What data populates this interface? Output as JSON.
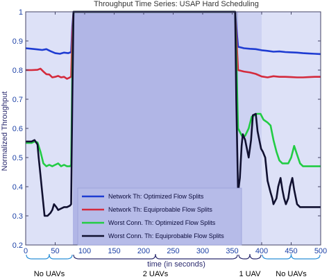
{
  "chart_data": {
    "type": "line",
    "title": "Throughput Time Series: USAP Hard Scheduling",
    "xlabel": "time (in seconds)",
    "ylabel": "Normalized Throughput",
    "xlim": [
      0,
      500
    ],
    "ylim": [
      0.2,
      1
    ],
    "xticks": [
      "0",
      "50",
      "100",
      "150",
      "200",
      "250",
      "300",
      "350",
      "400",
      "450",
      "500"
    ],
    "yticks": [
      "0.2",
      "0.3",
      "0.4",
      "0.5",
      "0.6",
      "0.7",
      "0.8",
      "0.9",
      "1"
    ],
    "grid": false,
    "legend_position": "lower-left",
    "regions": [
      {
        "label": "No UAVs",
        "x_start": 0,
        "x_end": 80,
        "shade": "#dde1f7"
      },
      {
        "label": "2 UAVs",
        "x_start": 80,
        "x_end": 360,
        "shade": "#b1b6e6"
      },
      {
        "label": "1 UAV",
        "x_start": 360,
        "x_end": 400,
        "shade": "#cdd2f2"
      },
      {
        "label": "No UAVs",
        "x_start": 400,
        "x_end": 500,
        "shade": "#dde1f7"
      }
    ],
    "series": [
      {
        "name": "Network Th: Optimized Flow Splits",
        "color": "#1e3cd2",
        "points": [
          [
            0,
            0.875
          ],
          [
            10,
            0.873
          ],
          [
            20,
            0.871
          ],
          [
            28,
            0.869
          ],
          [
            35,
            0.872
          ],
          [
            42,
            0.865
          ],
          [
            50,
            0.858
          ],
          [
            58,
            0.856
          ],
          [
            65,
            0.86
          ],
          [
            72,
            0.858
          ],
          [
            77,
            0.862
          ],
          [
            79,
            0.95
          ],
          [
            81,
            1.0
          ],
          [
            355,
            1.0
          ],
          [
            357,
            0.95
          ],
          [
            360,
            0.88
          ],
          [
            370,
            0.875
          ],
          [
            380,
            0.873
          ],
          [
            390,
            0.872
          ],
          [
            400,
            0.868
          ],
          [
            410,
            0.866
          ],
          [
            420,
            0.863
          ],
          [
            430,
            0.864
          ],
          [
            440,
            0.862
          ],
          [
            450,
            0.861
          ],
          [
            460,
            0.86
          ],
          [
            470,
            0.858
          ],
          [
            480,
            0.857
          ],
          [
            490,
            0.856
          ],
          [
            500,
            0.855
          ]
        ]
      },
      {
        "name": "Network Th: Equiprobable Flow Splits",
        "color": "#d42a3c",
        "points": [
          [
            0,
            0.8
          ],
          [
            10,
            0.8
          ],
          [
            20,
            0.801
          ],
          [
            25,
            0.805
          ],
          [
            30,
            0.795
          ],
          [
            35,
            0.786
          ],
          [
            40,
            0.785
          ],
          [
            45,
            0.775
          ],
          [
            50,
            0.777
          ],
          [
            55,
            0.78
          ],
          [
            60,
            0.775
          ],
          [
            65,
            0.777
          ],
          [
            70,
            0.77
          ],
          [
            75,
            0.775
          ],
          [
            77,
            0.778
          ],
          [
            79,
            0.92
          ],
          [
            81,
            1.0
          ],
          [
            355,
            1.0
          ],
          [
            357,
            0.92
          ],
          [
            360,
            0.8
          ],
          [
            370,
            0.795
          ],
          [
            380,
            0.792
          ],
          [
            390,
            0.787
          ],
          [
            400,
            0.778
          ],
          [
            410,
            0.775
          ],
          [
            420,
            0.779
          ],
          [
            430,
            0.777
          ],
          [
            440,
            0.777
          ],
          [
            450,
            0.776
          ],
          [
            460,
            0.775
          ],
          [
            470,
            0.775
          ],
          [
            480,
            0.776
          ],
          [
            490,
            0.777
          ],
          [
            500,
            0.777
          ]
        ]
      },
      {
        "name": "Worst Conn. Th: Optimized Flow Splits",
        "color": "#22cc44",
        "points": [
          [
            0,
            0.55
          ],
          [
            10,
            0.55
          ],
          [
            15,
            0.555
          ],
          [
            20,
            0.552
          ],
          [
            25,
            0.52
          ],
          [
            30,
            0.48
          ],
          [
            35,
            0.47
          ],
          [
            40,
            0.475
          ],
          [
            45,
            0.47
          ],
          [
            50,
            0.475
          ],
          [
            55,
            0.48
          ],
          [
            60,
            0.47
          ],
          [
            65,
            0.475
          ],
          [
            70,
            0.47
          ],
          [
            75,
            0.47
          ],
          [
            77,
            0.475
          ],
          [
            79,
            0.8
          ],
          [
            81,
            1.0
          ],
          [
            355,
            1.0
          ],
          [
            357,
            0.85
          ],
          [
            360,
            0.6
          ],
          [
            365,
            0.58
          ],
          [
            368,
            0.57
          ],
          [
            372,
            0.575
          ],
          [
            378,
            0.6
          ],
          [
            383,
            0.64
          ],
          [
            388,
            0.645
          ],
          [
            392,
            0.65
          ],
          [
            398,
            0.65
          ],
          [
            403,
            0.63
          ],
          [
            410,
            0.62
          ],
          [
            415,
            0.61
          ],
          [
            420,
            0.56
          ],
          [
            425,
            0.52
          ],
          [
            430,
            0.49
          ],
          [
            435,
            0.48
          ],
          [
            440,
            0.48
          ],
          [
            445,
            0.48
          ],
          [
            450,
            0.5
          ],
          [
            455,
            0.54
          ],
          [
            460,
            0.51
          ],
          [
            465,
            0.48
          ],
          [
            470,
            0.47
          ],
          [
            475,
            0.47
          ],
          [
            480,
            0.47
          ],
          [
            485,
            0.47
          ],
          [
            490,
            0.47
          ],
          [
            495,
            0.47
          ],
          [
            500,
            0.47
          ]
        ]
      },
      {
        "name": "Worst Conn. Th: Equiprobable Flow Splits",
        "color": "#101030",
        "points": [
          [
            0,
            0.555
          ],
          [
            10,
            0.555
          ],
          [
            15,
            0.56
          ],
          [
            20,
            0.545
          ],
          [
            22,
            0.5
          ],
          [
            25,
            0.44
          ],
          [
            28,
            0.38
          ],
          [
            30,
            0.34
          ],
          [
            32,
            0.3
          ],
          [
            37,
            0.3
          ],
          [
            42,
            0.31
          ],
          [
            45,
            0.32
          ],
          [
            48,
            0.34
          ],
          [
            52,
            0.33
          ],
          [
            55,
            0.32
          ],
          [
            60,
            0.325
          ],
          [
            65,
            0.33
          ],
          [
            70,
            0.33
          ],
          [
            75,
            0.335
          ],
          [
            77,
            0.34
          ],
          [
            79,
            0.7
          ],
          [
            81,
            1.0
          ],
          [
            355,
            1.0
          ],
          [
            357,
            0.7
          ],
          [
            360,
            0.38
          ],
          [
            363,
            0.43
          ],
          [
            366,
            0.54
          ],
          [
            368,
            0.58
          ],
          [
            372,
            0.56
          ],
          [
            376,
            0.52
          ],
          [
            378,
            0.5
          ],
          [
            382,
            0.56
          ],
          [
            385,
            0.645
          ],
          [
            390,
            0.65
          ],
          [
            393,
            0.59
          ],
          [
            396,
            0.56
          ],
          [
            399,
            0.53
          ],
          [
            402,
            0.52
          ],
          [
            406,
            0.5
          ],
          [
            410,
            0.42
          ],
          [
            415,
            0.38
          ],
          [
            418,
            0.36
          ],
          [
            420,
            0.34
          ],
          [
            425,
            0.36
          ],
          [
            428,
            0.4
          ],
          [
            432,
            0.43
          ],
          [
            435,
            0.39
          ],
          [
            438,
            0.36
          ],
          [
            441,
            0.34
          ],
          [
            445,
            0.36
          ],
          [
            448,
            0.4
          ],
          [
            452,
            0.43
          ],
          [
            455,
            0.39
          ],
          [
            460,
            0.34
          ],
          [
            465,
            0.33
          ],
          [
            470,
            0.33
          ],
          [
            480,
            0.33
          ],
          [
            490,
            0.33
          ],
          [
            500,
            0.33
          ]
        ]
      }
    ]
  }
}
